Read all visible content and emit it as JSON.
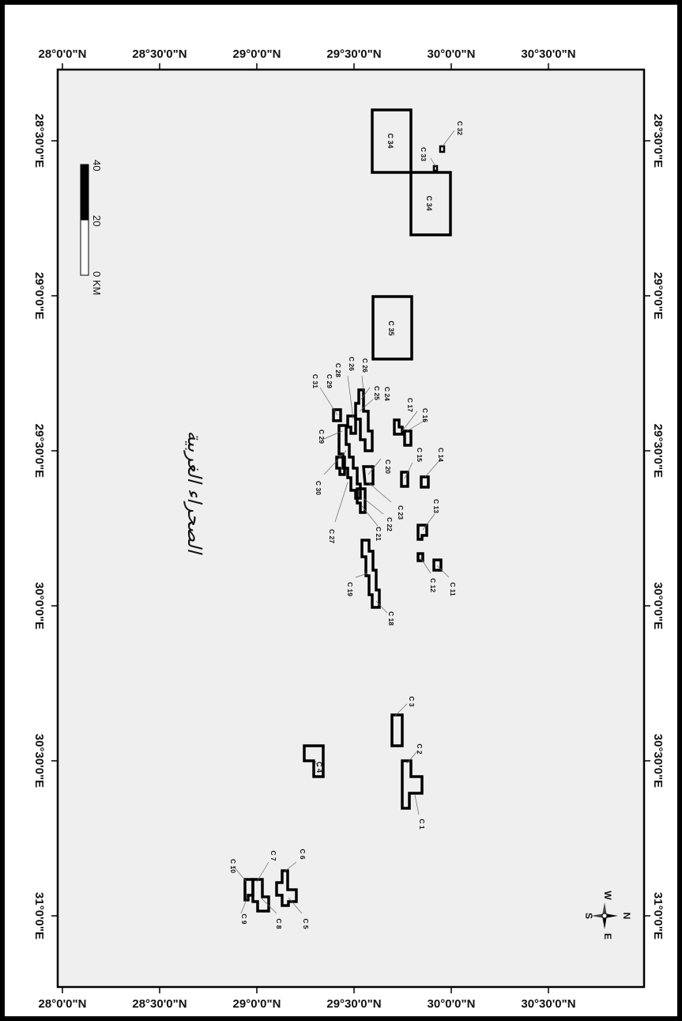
{
  "map": {
    "top_axis_labels": [
      "28°0'0\"N",
      "28°30'0\"N",
      "29°0'0\"N",
      "29°30'0\"N",
      "30°0'0\"N",
      "30°30'0\"N"
    ],
    "bottom_axis_labels": [
      "28°0'0\"N",
      "28°30'0\"N",
      "29°0'0\"N",
      "29°30'0\"N",
      "30°0'0\"N",
      "30°30'0\"N"
    ],
    "right_axis_labels": [
      "28°30'0\"E",
      "29°0'0\"E",
      "29°30'0\"E",
      "30°0'0\"E",
      "30°30'0\"E",
      "31°0'0\"E"
    ],
    "left_axis_labels": [
      "28°30'0\"E",
      "29°0'0\"E",
      "29°30'0\"E",
      "30°0'0\"E",
      "30°30'0\"E",
      "31°0'0\"E"
    ],
    "region_label": "الصحراء الغربية",
    "scale_bar": {
      "labels": [
        "0 KM",
        "20",
        "40"
      ],
      "colors": {
        "filled": "#000000",
        "empty": "#ffffff"
      }
    },
    "north_arrow": {
      "N": "N",
      "S": "S",
      "E": "E",
      "W": "W"
    },
    "blocks": [
      {
        "id": "C 1",
        "label": "C 1"
      },
      {
        "id": "C 2",
        "label": "C 2"
      },
      {
        "id": "C 3",
        "label": "C 3"
      },
      {
        "id": "C 4",
        "label": "C 4"
      },
      {
        "id": "C 5",
        "label": "C 5"
      },
      {
        "id": "C 6",
        "label": "C 6"
      },
      {
        "id": "C 7",
        "label": "C 7"
      },
      {
        "id": "C 8",
        "label": "C 8"
      },
      {
        "id": "C 9",
        "label": "C 9"
      },
      {
        "id": "C 10",
        "label": "C 10"
      },
      {
        "id": "C 11",
        "label": "C 11"
      },
      {
        "id": "C 12",
        "label": "C 12"
      },
      {
        "id": "C 13",
        "label": "C 13"
      },
      {
        "id": "C 14",
        "label": "C 14"
      },
      {
        "id": "C 15",
        "label": "C 15"
      },
      {
        "id": "C 16",
        "label": "C 16"
      },
      {
        "id": "C 17",
        "label": "C 17"
      },
      {
        "id": "C 18",
        "label": "C 18"
      },
      {
        "id": "C 19",
        "label": "C 19"
      },
      {
        "id": "C 20",
        "label": "C 20"
      },
      {
        "id": "C 21",
        "label": "C 21"
      },
      {
        "id": "C 22",
        "label": "C 22"
      },
      {
        "id": "C 23",
        "label": "C 23"
      },
      {
        "id": "C 24",
        "label": "C 24"
      },
      {
        "id": "C 25",
        "label": "C 25"
      },
      {
        "id": "C 26",
        "label": "C 26"
      },
      {
        "id": "C 27",
        "label": "C 27"
      },
      {
        "id": "C 28",
        "label": "C 28"
      },
      {
        "id": "C 29",
        "label": "C 29"
      },
      {
        "id": "C 30",
        "label": "C 30"
      },
      {
        "id": "C 31",
        "label": "C 31"
      },
      {
        "id": "C 32",
        "label": "C 32"
      },
      {
        "id": "C 33",
        "label": "C 33"
      },
      {
        "id": "C 34",
        "label": "C 34"
      },
      {
        "id": "C 35",
        "label": "C 35"
      }
    ]
  }
}
